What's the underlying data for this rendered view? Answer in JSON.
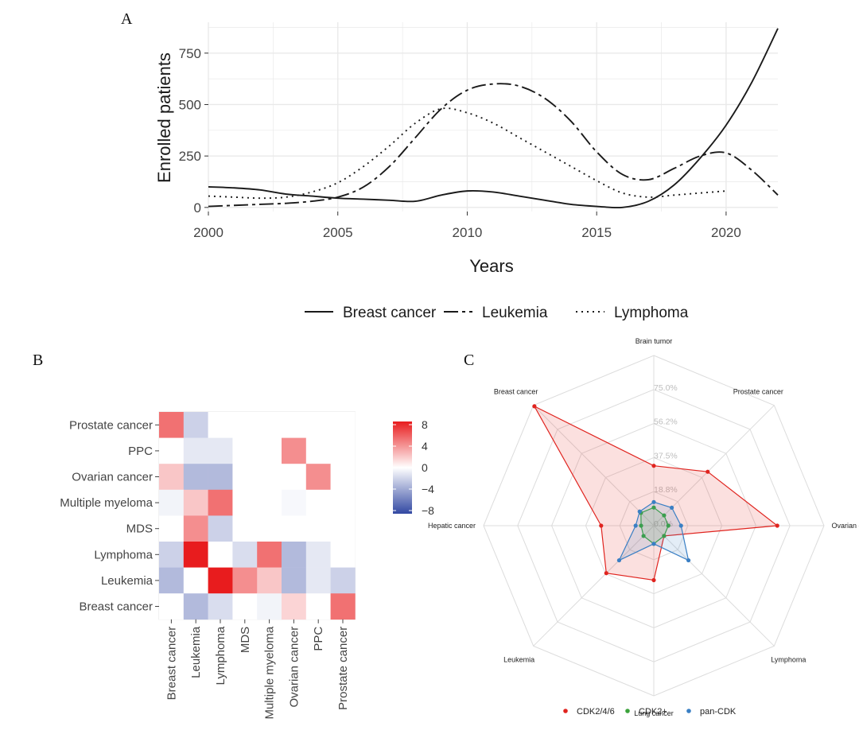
{
  "panels": {
    "a": "A",
    "b": "B",
    "c": "C"
  },
  "chart_data": [
    {
      "type": "line",
      "panel": "A",
      "xlabel": "Years",
      "ylabel": "Enrolled patients",
      "xlim": [
        2000,
        2022
      ],
      "ylim": [
        -20,
        900
      ],
      "xticks": [
        2000,
        2005,
        2010,
        2015,
        2020
      ],
      "yticks": [
        0,
        250,
        500,
        750
      ],
      "grid": true,
      "legend_position": "bottom",
      "series": [
        {
          "name": "Breast cancer",
          "dash": "solid",
          "x": [
            2000,
            2001,
            2002,
            2003,
            2004,
            2005,
            2006,
            2007,
            2008,
            2009,
            2010,
            2011,
            2012,
            2013,
            2014,
            2015,
            2016,
            2017,
            2018,
            2019,
            2020,
            2021,
            2022
          ],
          "y": [
            100,
            95,
            85,
            65,
            55,
            45,
            40,
            35,
            30,
            60,
            80,
            75,
            55,
            35,
            15,
            5,
            0,
            30,
            110,
            240,
            400,
            610,
            870
          ]
        },
        {
          "name": "Leukemia",
          "dash": "longdash",
          "x": [
            2000,
            2001,
            2002,
            2003,
            2004,
            2005,
            2006,
            2007,
            2008,
            2009,
            2010,
            2011,
            2012,
            2013,
            2014,
            2015,
            2016,
            2017,
            2018,
            2019,
            2020,
            2021,
            2022
          ],
          "y": [
            5,
            10,
            15,
            20,
            30,
            50,
            100,
            200,
            340,
            480,
            570,
            600,
            590,
            530,
            420,
            270,
            160,
            135,
            190,
            250,
            265,
            180,
            60
          ]
        },
        {
          "name": "Lymphoma",
          "dash": "dotted",
          "x": [
            2000,
            2001,
            2002,
            2003,
            2004,
            2005,
            2006,
            2007,
            2008,
            2009,
            2010,
            2011,
            2012,
            2013,
            2014,
            2015,
            2016,
            2017,
            2018,
            2019,
            2020
          ],
          "y": [
            55,
            50,
            45,
            50,
            75,
            120,
            200,
            300,
            410,
            480,
            460,
            410,
            340,
            270,
            200,
            130,
            70,
            50,
            60,
            70,
            80
          ]
        }
      ]
    },
    {
      "type": "heatmap",
      "panel": "B",
      "x_labels": [
        "Breast cancer",
        "Leukemia",
        "Lymphoma",
        "MDS",
        "Multiple myeloma",
        "Ovarian cancer",
        "PPC",
        "Prostate cancer"
      ],
      "y_labels": [
        "Prostate cancer",
        "PPC",
        "Ovarian cancer",
        "Multiple myeloma",
        "MDS",
        "Lymphoma",
        "Leukemia",
        "Breast cancer"
      ],
      "values": [
        [
          5,
          -2,
          0,
          0,
          0,
          0,
          0,
          0
        ],
        [
          0,
          -1,
          -1,
          0,
          0,
          4,
          0,
          0
        ],
        [
          2,
          -3,
          -3,
          0,
          0,
          0,
          4,
          0
        ],
        [
          -0.5,
          2,
          5,
          0,
          0,
          -0.3,
          0,
          0
        ],
        [
          0,
          4,
          -2,
          0,
          0,
          0,
          0,
          0
        ],
        [
          -2,
          8,
          0,
          -1.5,
          5,
          -3,
          -1,
          0
        ],
        [
          -3,
          0,
          8,
          4,
          2,
          -3,
          -1,
          -2
        ],
        [
          0,
          -3,
          -1.5,
          0,
          -0.5,
          1.5,
          0,
          5
        ]
      ],
      "colorbar": {
        "min": -8,
        "max": 8,
        "ticks": [
          "8",
          "4",
          "0",
          "−4",
          "−8"
        ]
      }
    },
    {
      "type": "radar",
      "panel": "C",
      "categories": [
        "Brain tumor",
        "Prostate cancer",
        "Ovarian cancer",
        "Lymphoma",
        "Lung cancer",
        "Leukemia",
        "Hepatic cancer",
        "Breast cancer"
      ],
      "r_max": 93.75,
      "r_ticks": [
        "75.0%",
        "56.2%",
        "37.5%",
        "18.8%",
        "0.0%"
      ],
      "series": [
        {
          "name": "CDK2/4/6",
          "color": "#e0241f",
          "values": [
            33,
            42,
            68,
            8,
            30,
            37,
            29,
            93
          ]
        },
        {
          "name": "CDK2+",
          "color": "#3ca33c",
          "values": [
            10,
            8,
            8,
            8,
            10,
            8,
            7,
            10
          ]
        },
        {
          "name": "pan-CDK",
          "color": "#3a7fc4",
          "values": [
            13,
            14,
            15,
            27,
            10,
            27,
            10,
            11
          ]
        }
      ]
    }
  ]
}
